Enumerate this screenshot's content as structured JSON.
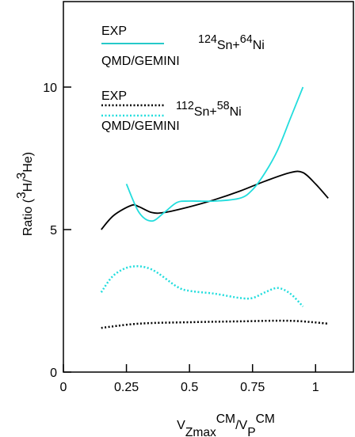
{
  "chart_data": {
    "type": "line",
    "x_label": [
      {
        "text": "V"
      },
      {
        "text": "Zmax",
        "sub": true
      },
      {
        "text": "CM",
        "sup": true
      },
      {
        "text": "/V"
      },
      {
        "text": "P",
        "sub": true
      },
      {
        "text": "CM",
        "sup": true
      }
    ],
    "y_label": [
      {
        "text": "Ratio ("
      },
      {
        "text": "3",
        "sup": true
      },
      {
        "text": "H/"
      },
      {
        "text": "3",
        "sup": true
      },
      {
        "text": "He)"
      }
    ],
    "annotations": [
      [
        {
          "text": "124",
          "sup": true
        },
        {
          "text": "Sn+"
        },
        {
          "text": "64",
          "sup": true
        },
        {
          "text": "Ni"
        }
      ],
      [
        {
          "text": "112",
          "sup": true
        },
        {
          "text": "Sn+"
        },
        {
          "text": "58",
          "sup": true
        },
        {
          "text": "Ni"
        }
      ]
    ],
    "xlim": [
      0,
      1.15
    ],
    "ylim": [
      0,
      13
    ],
    "xticks": [
      0,
      0.25,
      0.5,
      0.75,
      1
    ],
    "yticks": [
      0,
      5,
      10
    ],
    "series": [
      {
        "name": "EXP",
        "color": "#000000",
        "dash": "solid",
        "x": [
          0.15,
          0.2,
          0.27,
          0.3,
          0.35,
          0.4,
          0.5,
          0.6,
          0.7,
          0.8,
          0.9,
          0.95,
          1.0,
          1.05
        ],
        "values": [
          5.0,
          5.5,
          5.85,
          5.8,
          5.6,
          5.6,
          5.8,
          6.05,
          6.35,
          6.7,
          7.0,
          7.0,
          6.6,
          6.1
        ]
      },
      {
        "name": "QMD/GEMINI",
        "color": "#22dddd",
        "dash": "solid",
        "x": [
          0.25,
          0.3,
          0.35,
          0.4,
          0.45,
          0.5,
          0.6,
          0.7,
          0.75,
          0.8,
          0.85,
          0.9,
          0.95
        ],
        "values": [
          6.6,
          5.6,
          5.3,
          5.6,
          5.95,
          6.0,
          6.0,
          6.1,
          6.4,
          7.0,
          7.8,
          8.9,
          10.0
        ]
      },
      {
        "name": "EXP",
        "color": "#000000",
        "dash": "dotted",
        "x": [
          0.15,
          0.3,
          0.5,
          0.7,
          0.9,
          1.05
        ],
        "values": [
          1.55,
          1.7,
          1.75,
          1.78,
          1.8,
          1.7
        ]
      },
      {
        "name": "QMD/GEMINI",
        "color": "#22dddd",
        "dash": "dotted",
        "x": [
          0.15,
          0.2,
          0.27,
          0.35,
          0.45,
          0.5,
          0.6,
          0.7,
          0.75,
          0.8,
          0.85,
          0.9,
          0.95
        ],
        "values": [
          2.8,
          3.4,
          3.7,
          3.6,
          3.0,
          2.85,
          2.75,
          2.6,
          2.6,
          2.8,
          2.95,
          2.75,
          2.3
        ]
      }
    ]
  }
}
